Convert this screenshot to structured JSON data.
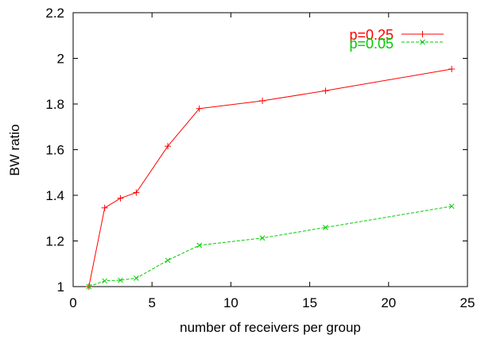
{
  "chart_data": {
    "type": "line",
    "xlabel": "number of receivers per group",
    "ylabel": "BW ratio",
    "xlim": [
      0,
      25
    ],
    "ylim": [
      1,
      2.2
    ],
    "xticks": [
      0,
      5,
      10,
      15,
      20,
      25
    ],
    "yticks": [
      1,
      1.2,
      1.4,
      1.6,
      1.8,
      2,
      2.2
    ],
    "xtick_labels": [
      "0",
      "5",
      "10",
      "15",
      "20",
      "25"
    ],
    "ytick_labels": [
      "1",
      "1.2",
      "1.4",
      "1.6",
      "1.8",
      "2",
      "2.2"
    ],
    "grid": false,
    "legend_position": "top-right",
    "series": [
      {
        "name": "p=0.25",
        "color": "#ff0000",
        "marker": "plus",
        "dash": "solid",
        "x": [
          1,
          2,
          3,
          4,
          6,
          8,
          12,
          16,
          24
        ],
        "y": [
          1.0,
          1.345,
          1.387,
          1.412,
          1.615,
          1.78,
          1.814,
          1.858,
          1.953
        ]
      },
      {
        "name": "p=0.05",
        "color": "#00cc00",
        "marker": "x",
        "dash": "dashed",
        "x": [
          1,
          2,
          3,
          4,
          6,
          8,
          12,
          16,
          24
        ],
        "y": [
          1.0,
          1.025,
          1.028,
          1.037,
          1.115,
          1.181,
          1.213,
          1.259,
          1.352
        ]
      }
    ]
  }
}
